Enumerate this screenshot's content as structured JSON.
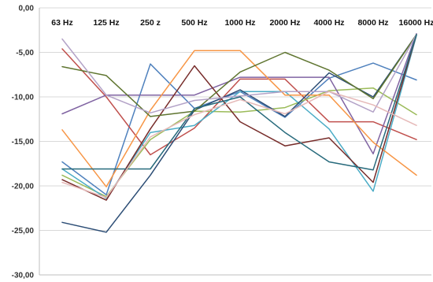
{
  "chart_data": {
    "type": "line",
    "title": "",
    "xlabel": "",
    "ylabel": "",
    "categories": [
      "63 Hz",
      "125 Hz",
      "250 z",
      "500 Hz",
      "1000 Hz",
      "2000 Hz",
      "4000 Hz",
      "8000 Hz",
      "16000 Hz"
    ],
    "ylim": [
      -30,
      0
    ],
    "yticks": [
      "0,00",
      "-5,00",
      "-10,00",
      "-15,00",
      "-20,00",
      "-25,00",
      "-30,00"
    ],
    "grid": true,
    "legend": "none",
    "series": [
      {
        "color": "#4f81bd",
        "values": [
          -17.3,
          -21.0,
          -6.3,
          -11.3,
          -9.4,
          -12.3,
          -7.9,
          -6.2,
          -8.1
        ]
      },
      {
        "color": "#c0504d",
        "values": [
          -4.6,
          -10.0,
          -16.5,
          -13.5,
          -8.0,
          -8.0,
          -12.8,
          -12.8,
          -14.8
        ]
      },
      {
        "color": "#9bbb59",
        "values": [
          -18.8,
          -21.2,
          -14.8,
          -11.6,
          -11.7,
          -11.2,
          -9.3,
          -9.0,
          -12.0
        ]
      },
      {
        "color": "#8064a2",
        "values": [
          -11.9,
          -9.8,
          -9.8,
          -9.8,
          -7.8,
          -7.8,
          -7.8,
          -16.4,
          -2.9
        ]
      },
      {
        "color": "#4bacc6",
        "values": [
          -18.1,
          -21.4,
          -14.0,
          -13.2,
          -9.4,
          -9.4,
          -13.6,
          -20.6,
          -3.1
        ]
      },
      {
        "color": "#f79646",
        "values": [
          -13.7,
          -20.1,
          -11.5,
          -4.8,
          -4.8,
          -9.8,
          -9.8,
          -15.1,
          -18.8
        ]
      },
      {
        "color": "#2c4d75",
        "values": [
          -24.1,
          -25.2,
          -18.8,
          -11.5,
          -9.2,
          -12.2,
          -7.3,
          -10.0,
          -3.0
        ]
      },
      {
        "color": "#772c2a",
        "values": [
          -19.3,
          -21.6,
          -13.6,
          -6.5,
          -12.8,
          -15.5,
          -14.6,
          -19.6,
          -3.0
        ]
      },
      {
        "color": "#5f7530",
        "values": [
          -6.6,
          -7.6,
          -12.2,
          -11.6,
          -7.2,
          -5.0,
          -7.0,
          -10.2,
          -3.0
        ]
      },
      {
        "color": "#b3a2c7",
        "values": [
          -3.5,
          -9.8,
          -11.8,
          -10.4,
          -9.9,
          -9.4,
          -9.4,
          -11.7,
          -3.0
        ]
      },
      {
        "color": "#276a7c",
        "values": [
          -18.1,
          -18.1,
          -18.1,
          -11.3,
          -10.0,
          -14.0,
          -17.3,
          -18.2,
          -3.0
        ]
      },
      {
        "color": "#e6b9b8",
        "values": [
          -19.6,
          -21.3,
          -14.5,
          -12.0,
          -10.3,
          -11.9,
          -9.4,
          -10.9,
          -13.2
        ]
      }
    ]
  }
}
